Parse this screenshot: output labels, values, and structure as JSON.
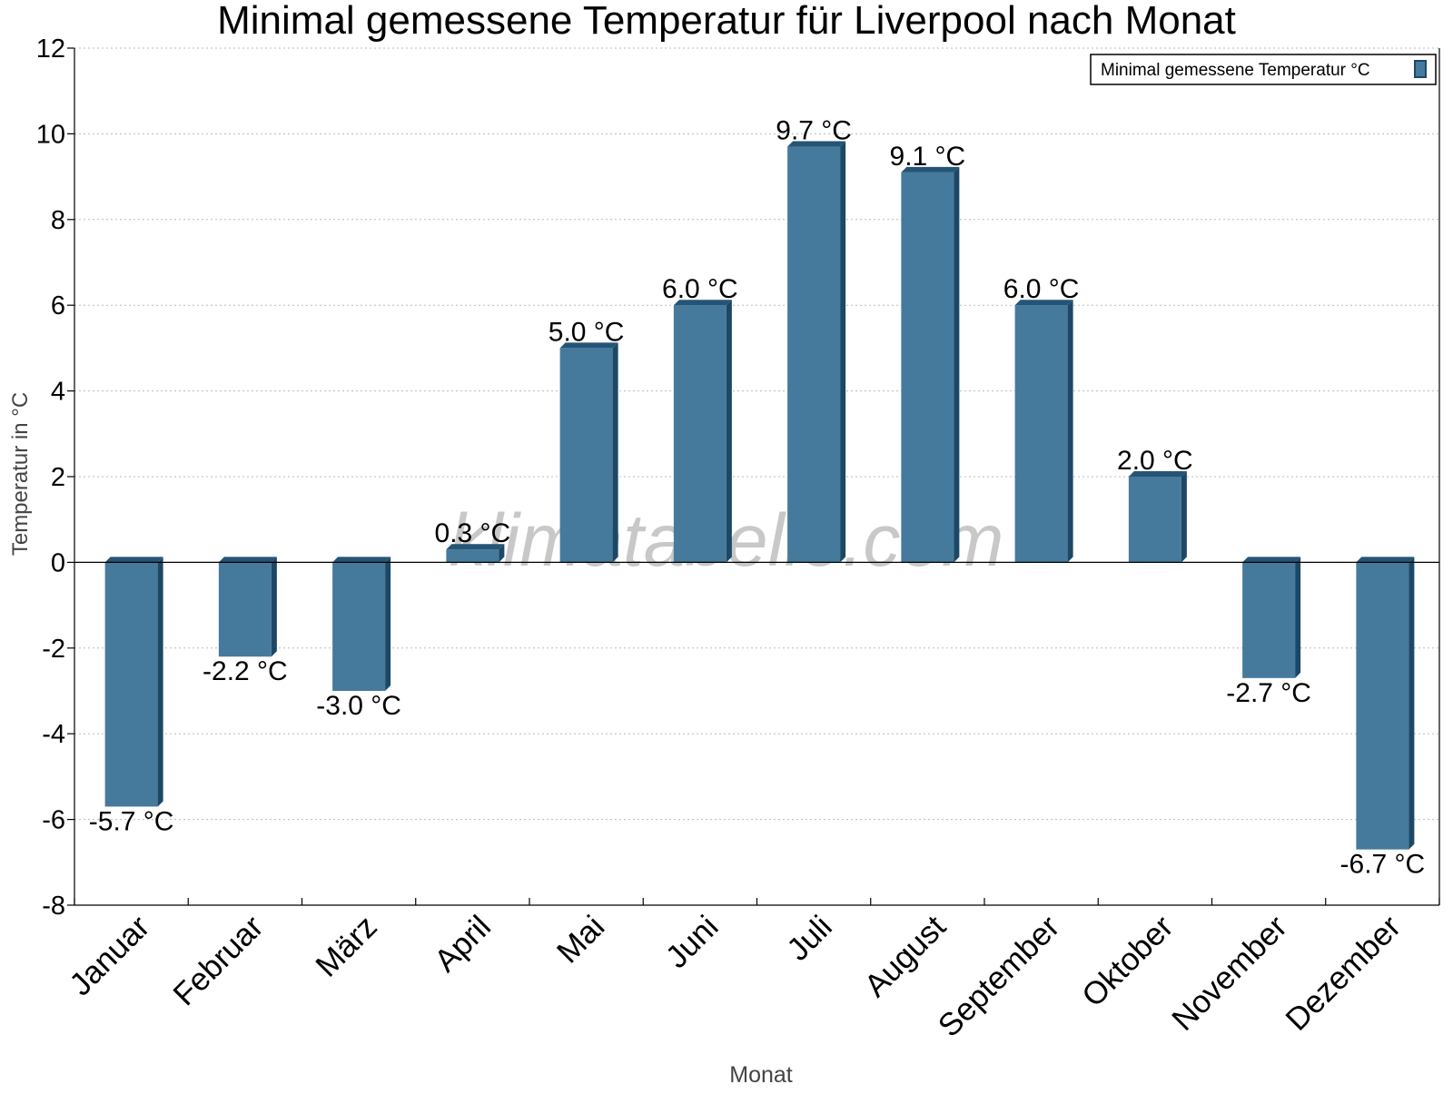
{
  "chart_data": {
    "type": "bar",
    "title": "Minimal gemessene Temperatur für Liverpool nach Monat",
    "xlabel": "Monat",
    "ylabel": "Temperatur in °C",
    "ylim": [
      -8,
      12
    ],
    "yticks": [
      12,
      10,
      8,
      6,
      4,
      2,
      0,
      -2,
      -4,
      -6,
      -8
    ],
    "grid": true,
    "legend_position": "top-right",
    "categories": [
      "Januar",
      "Februar",
      "März",
      "April",
      "Mai",
      "Juni",
      "Juli",
      "August",
      "September",
      "Oktober",
      "November",
      "Dezember"
    ],
    "series": [
      {
        "name": "Minimal gemessene Temperatur °C",
        "values": [
          -5.7,
          -2.2,
          -3.0,
          0.3,
          5.0,
          6.0,
          9.7,
          9.1,
          6.0,
          2.0,
          -2.7,
          -6.7
        ],
        "labels": [
          "-5.7 °C",
          "-2.2 °C",
          "-3.0 °C",
          "0.3 °C",
          "5.0 °C",
          "6.0 °C",
          "9.7 °C",
          "9.1 °C",
          "6.0 °C",
          "2.0 °C",
          "-2.7 °C",
          "-6.7 °C"
        ]
      }
    ],
    "colors": {
      "bar_front": "#467a9c",
      "bar_side": "#1c4866",
      "bar_top": "#245575",
      "grid": "#bbbbbb",
      "axis": "#000000",
      "axis_title": "#444444",
      "watermark": "#c8c8c8"
    },
    "watermark": "klimatabelle.com"
  }
}
